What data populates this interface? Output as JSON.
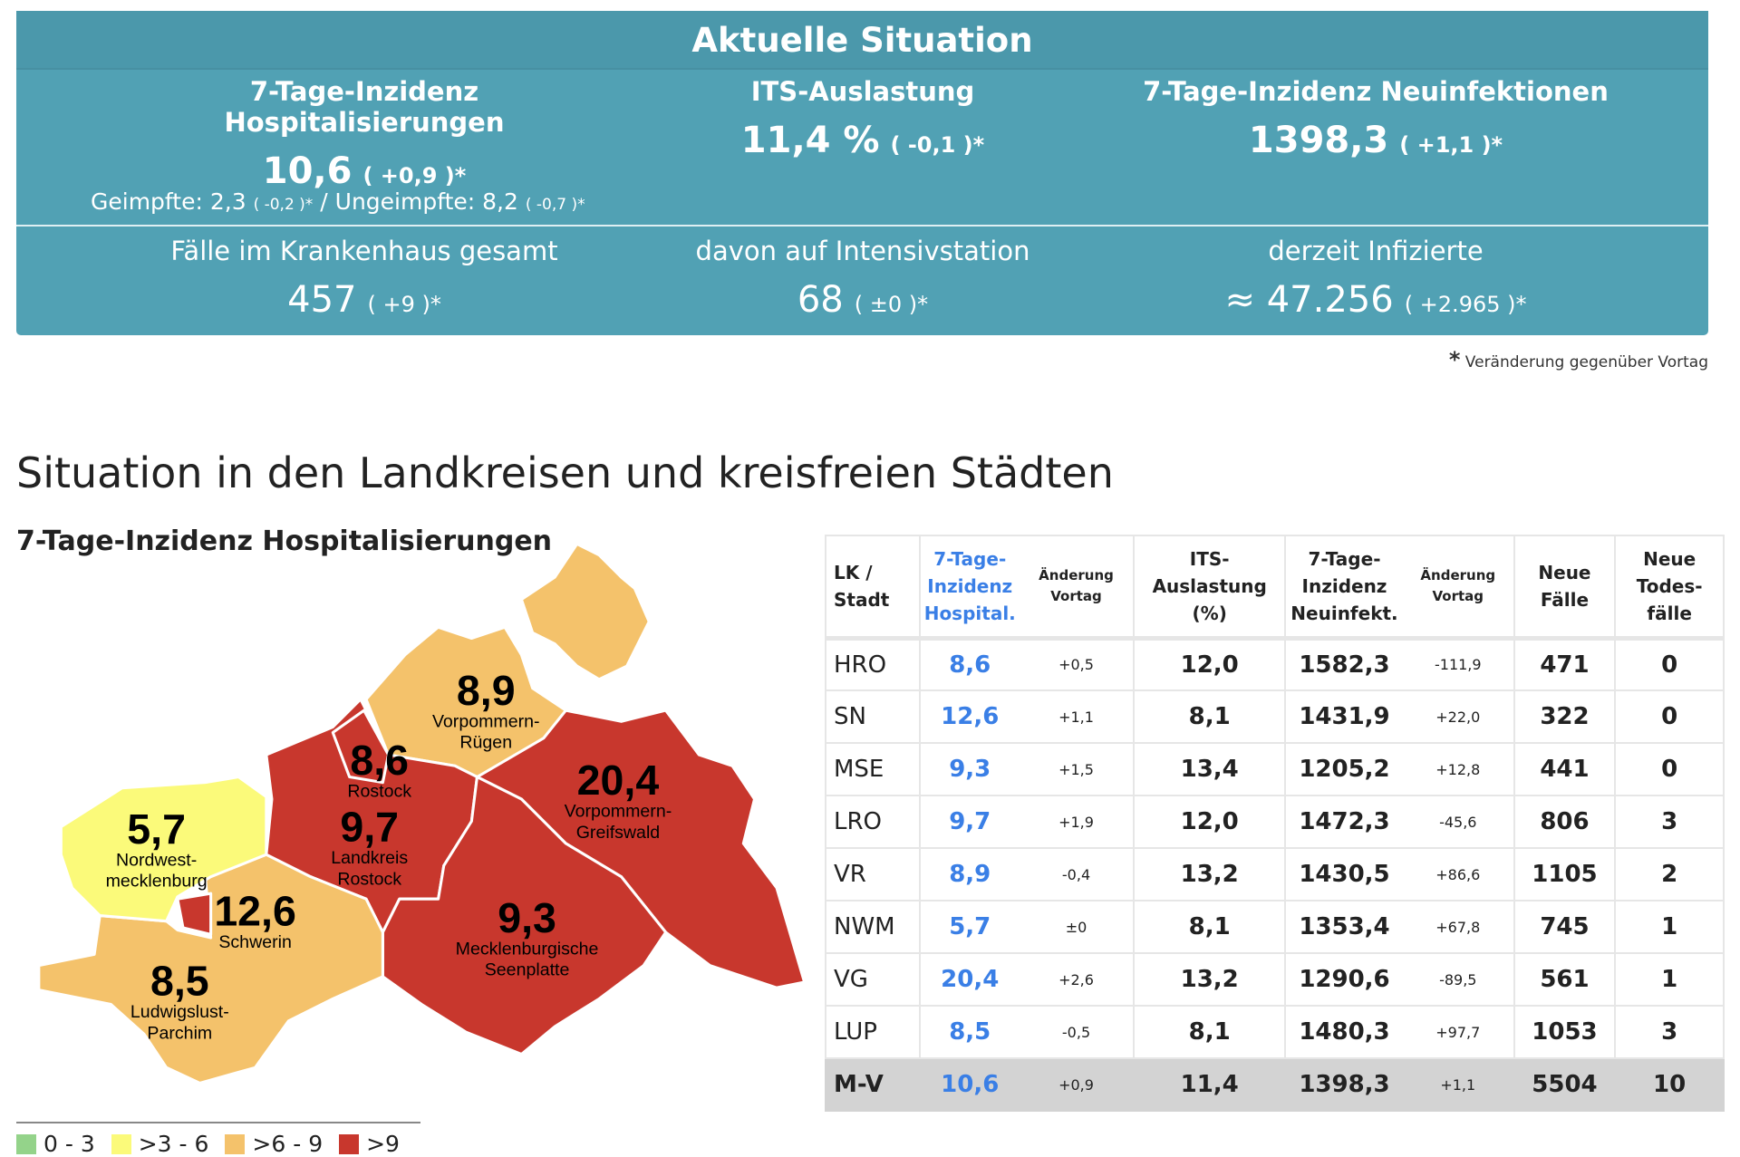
{
  "banner": {
    "title": "Aktuelle Situation",
    "hosp": {
      "label": "7-Tage-Inzidenz Hospitalisierungen",
      "value": "10,6",
      "change": "( +0,9 )*"
    },
    "its": {
      "label": "ITS-Auslastung",
      "value": "11,4 %",
      "change": "( -0,1 )*"
    },
    "neu": {
      "label": "7-Tage-Inzidenz Neuinfektionen",
      "value": "1398,3",
      "change": "( +1,1 )*"
    },
    "vacc": {
      "geimpfte": "Geimpfte: 2,3",
      "geimpfte_chg": "( -0,2 )*",
      "sep": "/",
      "ungeimpfte": "Ungeimpfte: 8,2",
      "ungeimpfte_chg": "( -0,7 )*"
    },
    "kh": {
      "label": "Fälle im Krankenhaus gesamt",
      "value": "457",
      "change": "( +9 )*"
    },
    "icu": {
      "label": "davon auf Intensivstation",
      "value": "68",
      "change": "( ±0 )*"
    },
    "inf": {
      "label": "derzeit Infizierte",
      "value": "≈ 47.256",
      "change": "( +2.965 )*"
    }
  },
  "footnote": {
    "star": "*",
    "text": "Veränderung gegenüber Vortag"
  },
  "section_title": "Situation in den Landkreisen und kreisfreien Städten",
  "map": {
    "title": "7-Tage-Inzidenz Hospitalisierungen",
    "colors": {
      "green": "#94d38a",
      "yellow": "#fbfa7a",
      "orange": "#f4c26b",
      "red": "#c8372d"
    },
    "regions": [
      {
        "value": "8,9",
        "name": [
          "Vorpommern-",
          "Rügen"
        ]
      },
      {
        "value": "8,6",
        "name": [
          "Rostock"
        ]
      },
      {
        "value": "9,7",
        "name": [
          "Landkreis",
          "Rostock"
        ]
      },
      {
        "value": "20,4",
        "name": [
          "Vorpommern-",
          "Greifswald"
        ]
      },
      {
        "value": "5,7",
        "name": [
          "Nordwest-",
          "mecklenburg"
        ]
      },
      {
        "value": "12,6",
        "name": [
          "Schwerin"
        ]
      },
      {
        "value": "9,3",
        "name": [
          "Mecklenburgische",
          "Seenplatte"
        ]
      },
      {
        "value": "8,5",
        "name": [
          "Ludwigslust-",
          "Parchim"
        ]
      }
    ],
    "legend": [
      "0 - 3",
      ">3 - 6",
      ">6 - 9",
      ">9"
    ]
  },
  "table": {
    "headers": {
      "lk": [
        "LK /",
        "Stadt"
      ],
      "hosp": [
        "7-Tage-",
        "Inzidenz",
        "Hospital."
      ],
      "chg": [
        "Änderung",
        "Vortag"
      ],
      "its": [
        "ITS-",
        "Auslastung",
        "(%)"
      ],
      "neu": [
        "7-Tage-",
        "Inzidenz",
        "Neuinfekt."
      ],
      "chg2": [
        "Änderung",
        "Vortag"
      ],
      "faelle": [
        "Neue",
        "Fälle"
      ],
      "tod": [
        "Neue",
        "Todes-",
        "fälle"
      ]
    },
    "rows": [
      [
        "HRO",
        "8,6",
        "+0,5",
        "12,0",
        "1582,3",
        "-111,9",
        "471",
        "0"
      ],
      [
        "SN",
        "12,6",
        "+1,1",
        "8,1",
        "1431,9",
        "+22,0",
        "322",
        "0"
      ],
      [
        "MSE",
        "9,3",
        "+1,5",
        "13,4",
        "1205,2",
        "+12,8",
        "441",
        "0"
      ],
      [
        "LRO",
        "9,7",
        "+1,9",
        "12,0",
        "1472,3",
        "-45,6",
        "806",
        "3"
      ],
      [
        "VR",
        "8,9",
        "-0,4",
        "13,2",
        "1430,5",
        "+86,6",
        "1105",
        "2"
      ],
      [
        "NWM",
        "5,7",
        "±0",
        "8,1",
        "1353,4",
        "+67,8",
        "745",
        "1"
      ],
      [
        "VG",
        "20,4",
        "+2,6",
        "13,2",
        "1290,6",
        "-89,5",
        "561",
        "1"
      ],
      [
        "LUP",
        "8,5",
        "-0,5",
        "8,1",
        "1480,3",
        "+97,7",
        "1053",
        "3"
      ]
    ],
    "total": [
      "M-V",
      "10,6",
      "+0,9",
      "11,4",
      "1398,3",
      "+1,1",
      "5504",
      "10"
    ]
  }
}
